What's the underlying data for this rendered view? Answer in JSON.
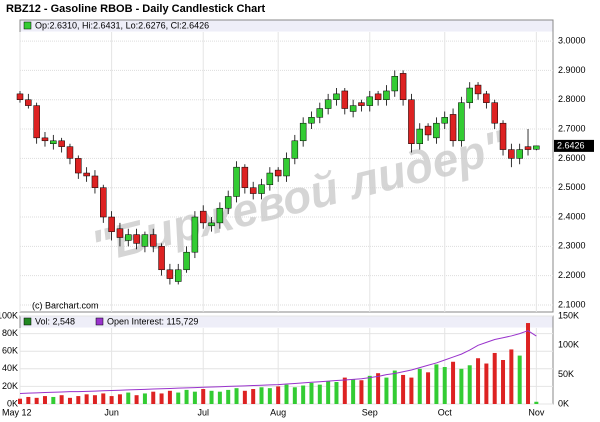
{
  "chart_data": [
    {
      "type": "candlestick",
      "title": "RBZ12 - Gasoline RBOB - Daily Candlestick Chart",
      "ohlc_label": "Op:2.6310, Hi:2.6431, Lo:2.6276, Cl:2.6426",
      "last_label": "2.6426",
      "copyright": "(c) Barchart.com",
      "watermark": "\"Биржевой лидер\"",
      "up_color": "#33cc33",
      "down_color": "#dd2222",
      "open": [
        2.82,
        2.8,
        2.78,
        2.67,
        2.65,
        2.66,
        2.64,
        2.6,
        2.55,
        2.54,
        2.5,
        2.4,
        2.36,
        2.32,
        2.34,
        2.3,
        2.34,
        2.3,
        2.22,
        2.18,
        2.22,
        2.28,
        2.42,
        2.37,
        2.38,
        2.43,
        2.47,
        2.57,
        2.5,
        2.48,
        2.51,
        2.56,
        2.54,
        2.6,
        2.66,
        2.72,
        2.74,
        2.77,
        2.8,
        2.83,
        2.76,
        2.79,
        2.78,
        2.82,
        2.8,
        2.83,
        2.89,
        2.8,
        2.65,
        2.71,
        2.67,
        2.72,
        2.75,
        2.66,
        2.79,
        2.85,
        2.82,
        2.79,
        2.72,
        2.63,
        2.6,
        2.64,
        2.631
      ],
      "high": [
        2.83,
        2.82,
        2.79,
        2.69,
        2.68,
        2.67,
        2.65,
        2.61,
        2.57,
        2.56,
        2.51,
        2.42,
        2.38,
        2.36,
        2.36,
        2.35,
        2.36,
        2.31,
        2.24,
        2.24,
        2.3,
        2.42,
        2.44,
        2.4,
        2.45,
        2.49,
        2.59,
        2.58,
        2.52,
        2.53,
        2.57,
        2.57,
        2.62,
        2.68,
        2.74,
        2.76,
        2.79,
        2.82,
        2.84,
        2.84,
        2.8,
        2.8,
        2.83,
        2.83,
        2.85,
        2.9,
        2.9,
        2.82,
        2.72,
        2.72,
        2.74,
        2.76,
        2.77,
        2.81,
        2.86,
        2.86,
        2.83,
        2.8,
        2.73,
        2.65,
        2.65,
        2.7,
        2.6431
      ],
      "low": [
        2.79,
        2.77,
        2.65,
        2.64,
        2.63,
        2.62,
        2.58,
        2.53,
        2.52,
        2.48,
        2.38,
        2.32,
        2.3,
        2.3,
        2.29,
        2.28,
        2.28,
        2.2,
        2.17,
        2.17,
        2.21,
        2.26,
        2.36,
        2.35,
        2.36,
        2.41,
        2.45,
        2.48,
        2.46,
        2.46,
        2.49,
        2.52,
        2.52,
        2.58,
        2.64,
        2.7,
        2.72,
        2.75,
        2.78,
        2.75,
        2.74,
        2.76,
        2.76,
        2.78,
        2.78,
        2.81,
        2.78,
        2.62,
        2.63,
        2.66,
        2.65,
        2.7,
        2.64,
        2.64,
        2.77,
        2.8,
        2.77,
        2.7,
        2.61,
        2.57,
        2.58,
        2.61,
        2.6276
      ],
      "close": [
        2.8,
        2.78,
        2.67,
        2.66,
        2.66,
        2.64,
        2.6,
        2.55,
        2.54,
        2.5,
        2.4,
        2.35,
        2.33,
        2.34,
        2.31,
        2.34,
        2.3,
        2.22,
        2.19,
        2.22,
        2.28,
        2.4,
        2.38,
        2.38,
        2.43,
        2.47,
        2.57,
        2.5,
        2.48,
        2.51,
        2.55,
        2.54,
        2.6,
        2.66,
        2.72,
        2.74,
        2.77,
        2.8,
        2.82,
        2.77,
        2.78,
        2.78,
        2.81,
        2.8,
        2.83,
        2.88,
        2.8,
        2.65,
        2.7,
        2.68,
        2.72,
        2.74,
        2.66,
        2.79,
        2.84,
        2.82,
        2.79,
        2.72,
        2.63,
        2.6,
        2.63,
        2.63,
        2.6426
      ],
      "xlim": [
        0,
        64
      ],
      "ylim": [
        2.076,
        3.072
      ],
      "yticks": [
        {
          "value": 2.1,
          "label": "2.1000"
        },
        {
          "value": 2.2,
          "label": "2.2000"
        },
        {
          "value": 2.3,
          "label": "2.3000"
        },
        {
          "value": 2.4,
          "label": "2.4000"
        },
        {
          "value": 2.5,
          "label": "2.5000"
        },
        {
          "value": 2.6,
          "label": "2.6000"
        },
        {
          "value": 2.7,
          "label": "2.7000"
        },
        {
          "value": 2.8,
          "label": "2.8000"
        },
        {
          "value": 2.9,
          "label": "2.9000"
        },
        {
          "value": 3.0,
          "label": "3.0000"
        }
      ],
      "grid": true
    },
    {
      "type": "bar",
      "series": [
        {
          "name": "Vol: 2,548",
          "color": "#228822",
          "values": [
            6000,
            8000,
            7000,
            9000,
            8000,
            10000,
            7000,
            9000,
            11000,
            10000,
            12000,
            9000,
            11000,
            13000,
            10000,
            12000,
            14000,
            12000,
            15000,
            13000,
            16000,
            14000,
            17000,
            15000,
            14000,
            16000,
            18000,
            15000,
            17000,
            19000,
            18000,
            20000,
            22000,
            19000,
            21000,
            24000,
            22000,
            26000,
            25000,
            30000,
            28000,
            27000,
            32000,
            35000,
            30000,
            38000,
            33000,
            30000,
            40000,
            36000,
            45000,
            42000,
            48000,
            40000,
            44000,
            52000,
            46000,
            58000,
            50000,
            62000,
            55000,
            92000,
            2548
          ]
        },
        {
          "name": "Open Interest: 115,729",
          "color": "#9933cc",
          "axis": "y2",
          "values": [
            18000,
            18500,
            19000,
            19500,
            20000,
            20500,
            21000,
            21000,
            21500,
            22000,
            22500,
            23000,
            23500,
            24000,
            24500,
            25000,
            25500,
            26000,
            26500,
            27000,
            27500,
            28000,
            28500,
            29000,
            29500,
            30000,
            30500,
            31000,
            31500,
            32000,
            32500,
            33000,
            34000,
            35000,
            36000,
            37000,
            38000,
            39000,
            40000,
            41000,
            42000,
            43000,
            45000,
            47000,
            50000,
            52000,
            55000,
            58000,
            62000,
            66000,
            70000,
            75000,
            80000,
            85000,
            92000,
            100000,
            105000,
            110000,
            113000,
            116000,
            120000,
            125000,
            115729
          ]
        }
      ],
      "xlim": [
        0,
        64
      ],
      "xticks": [
        {
          "value": 0,
          "label": "May 12"
        },
        {
          "value": 11,
          "label": "Jun"
        },
        {
          "value": 22,
          "label": "Jul"
        },
        {
          "value": 31,
          "label": "Aug"
        },
        {
          "value": 42,
          "label": "Sep"
        },
        {
          "value": 51,
          "label": "Oct"
        },
        {
          "value": 62,
          "label": "Nov"
        }
      ],
      "ylim": [
        0,
        100000
      ],
      "yticks": [
        {
          "value": 0,
          "label": "0K"
        },
        {
          "value": 20000,
          "label": "20K"
        },
        {
          "value": 40000,
          "label": "40K"
        },
        {
          "value": 60000,
          "label": "60K"
        },
        {
          "value": 80000,
          "label": "80K"
        },
        {
          "value": 100000,
          "label": "100K"
        }
      ],
      "y2lim": [
        0,
        150000
      ],
      "y2ticks": [
        {
          "value": 0,
          "label": "0K"
        },
        {
          "value": 50000,
          "label": "50K"
        },
        {
          "value": 100000,
          "label": "100K"
        },
        {
          "value": 150000,
          "label": "150K"
        }
      ],
      "grid": true
    }
  ]
}
